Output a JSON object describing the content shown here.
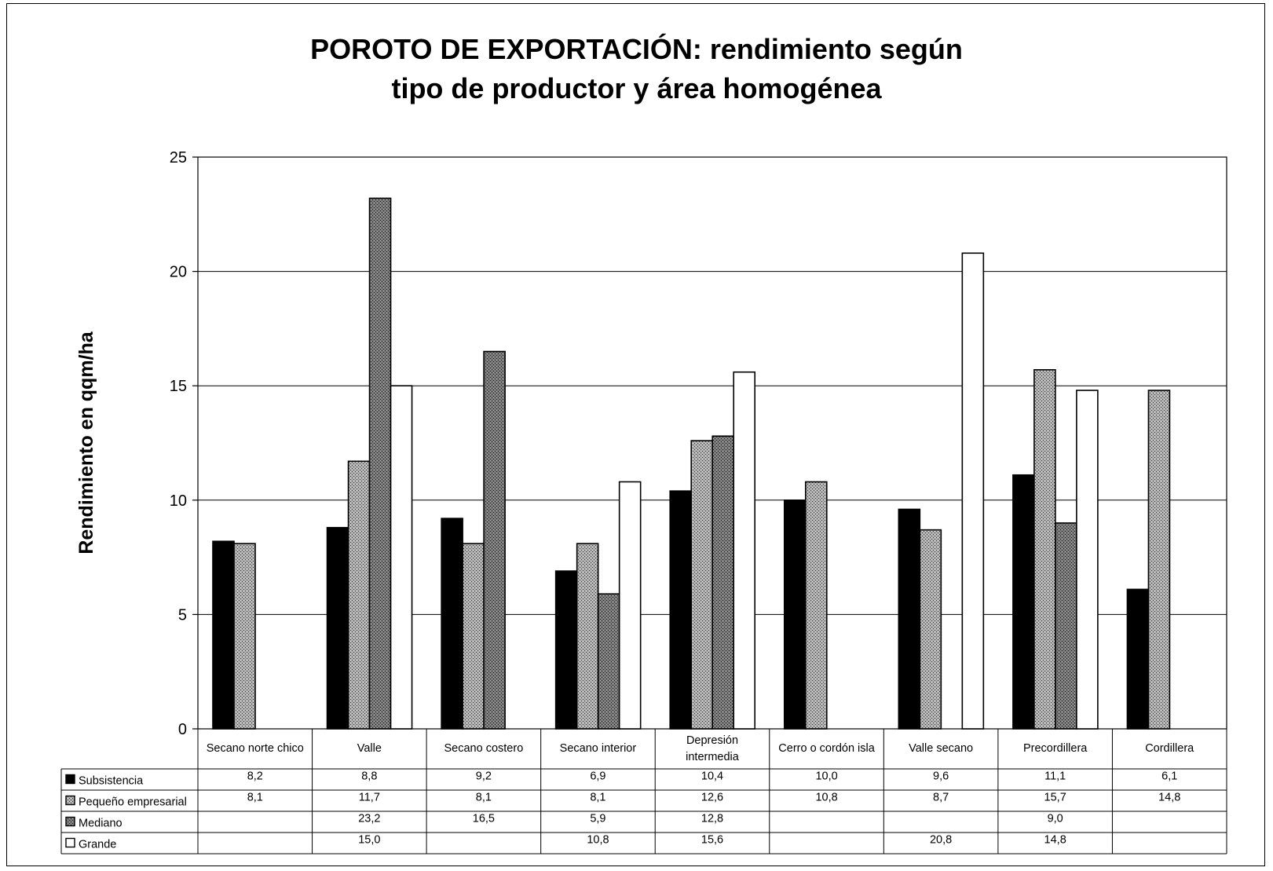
{
  "chart_data": {
    "type": "bar",
    "title_lines": [
      "POROTO DE EXPORTACIÓN: rendimiento según",
      "tipo de productor y área homogénea"
    ],
    "ylabel": "Rendimiento en qqm/ha",
    "xlabel": "",
    "ylim": [
      0,
      25
    ],
    "yticks": [
      0,
      5,
      10,
      15,
      20,
      25
    ],
    "grid": true,
    "legend": "data-table-below",
    "categories": [
      [
        "Secano norte chico"
      ],
      [
        "Valle"
      ],
      [
        "Secano costero"
      ],
      [
        "Secano interior"
      ],
      [
        "Depresión",
        "intermedia"
      ],
      [
        "Cerro o cordón isla"
      ],
      [
        "Valle secano"
      ],
      [
        "Precordillera"
      ],
      [
        "Cordillera"
      ]
    ],
    "series": [
      {
        "name": "Subsistencia",
        "color": "#000000",
        "pattern": "solid",
        "values": [
          8.2,
          8.8,
          9.2,
          6.9,
          10.4,
          10.0,
          9.6,
          11.1,
          6.1
        ],
        "labels": [
          "8,2",
          "8,8",
          "9,2",
          "6,9",
          "10,4",
          "10,0",
          "9,6",
          "11,1",
          "6,1"
        ]
      },
      {
        "name": "Pequeño empresarial",
        "color": "#8c8c8c",
        "pattern": "light-hatch",
        "values": [
          8.1,
          11.7,
          8.1,
          8.1,
          12.6,
          10.8,
          8.7,
          15.7,
          14.8
        ],
        "labels": [
          "8,1",
          "11,7",
          "8,1",
          "8,1",
          "12,6",
          "10,8",
          "8,7",
          "15,7",
          "14,8"
        ]
      },
      {
        "name": "Mediano",
        "color": "#6e6e6e",
        "pattern": "dark-hatch",
        "values": [
          null,
          23.2,
          16.5,
          5.9,
          12.8,
          null,
          null,
          9.0,
          null
        ],
        "labels": [
          "",
          "23,2",
          "16,5",
          "5,9",
          "12,8",
          "",
          "",
          "9,0",
          ""
        ]
      },
      {
        "name": "Grande",
        "color": "#ffffff",
        "pattern": "white",
        "values": [
          null,
          15.0,
          null,
          10.8,
          15.6,
          null,
          20.8,
          14.8,
          null
        ],
        "labels": [
          "",
          "15,0",
          "",
          "10,8",
          "15,6",
          "",
          "20,8",
          "14,8",
          ""
        ]
      }
    ]
  }
}
